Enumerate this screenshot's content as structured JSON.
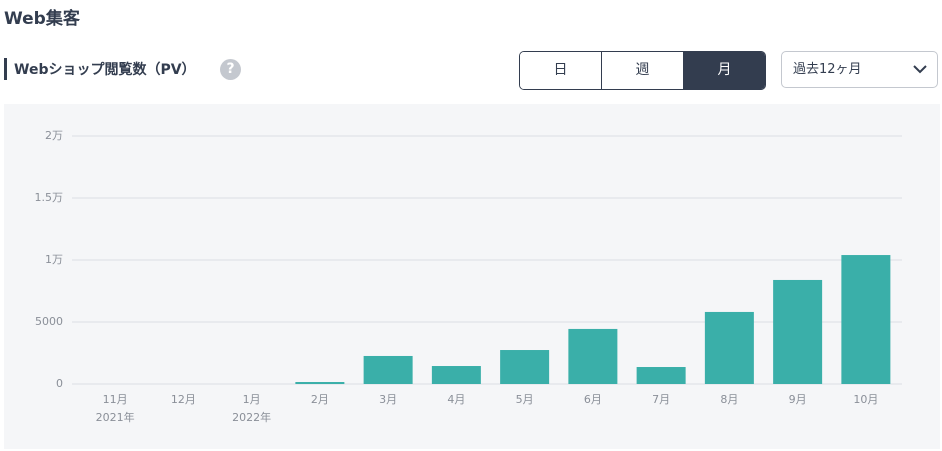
{
  "header": {
    "title": "Web集客"
  },
  "section": {
    "title": "Webショップ閲覧数（PV）",
    "help_icon": "?",
    "periods": [
      "日",
      "週",
      "月"
    ],
    "selected_period": "月",
    "range_select": "過去12ヶ月"
  },
  "chart_data": {
    "type": "bar",
    "categories": [
      "11月",
      "12月",
      "1月",
      "2月",
      "3月",
      "4月",
      "5月",
      "6月",
      "7月",
      "8月",
      "9月",
      "10月"
    ],
    "x_sublabels": [
      "2021年",
      null,
      "2022年",
      null,
      null,
      null,
      null,
      null,
      null,
      null,
      null,
      null
    ],
    "values": [
      0,
      0,
      0,
      160,
      2260,
      1450,
      2740,
      4440,
      1370,
      5810,
      8390,
      10400
    ],
    "color": "#3aafa9",
    "ylim": [
      0,
      20000
    ],
    "yticks": [
      0,
      5000,
      {
        "value": 10000,
        "label": "1万"
      },
      {
        "value": 15000,
        "label": "1.5万"
      },
      {
        "value": 20000,
        "label": "2万"
      }
    ],
    "grid": true
  }
}
